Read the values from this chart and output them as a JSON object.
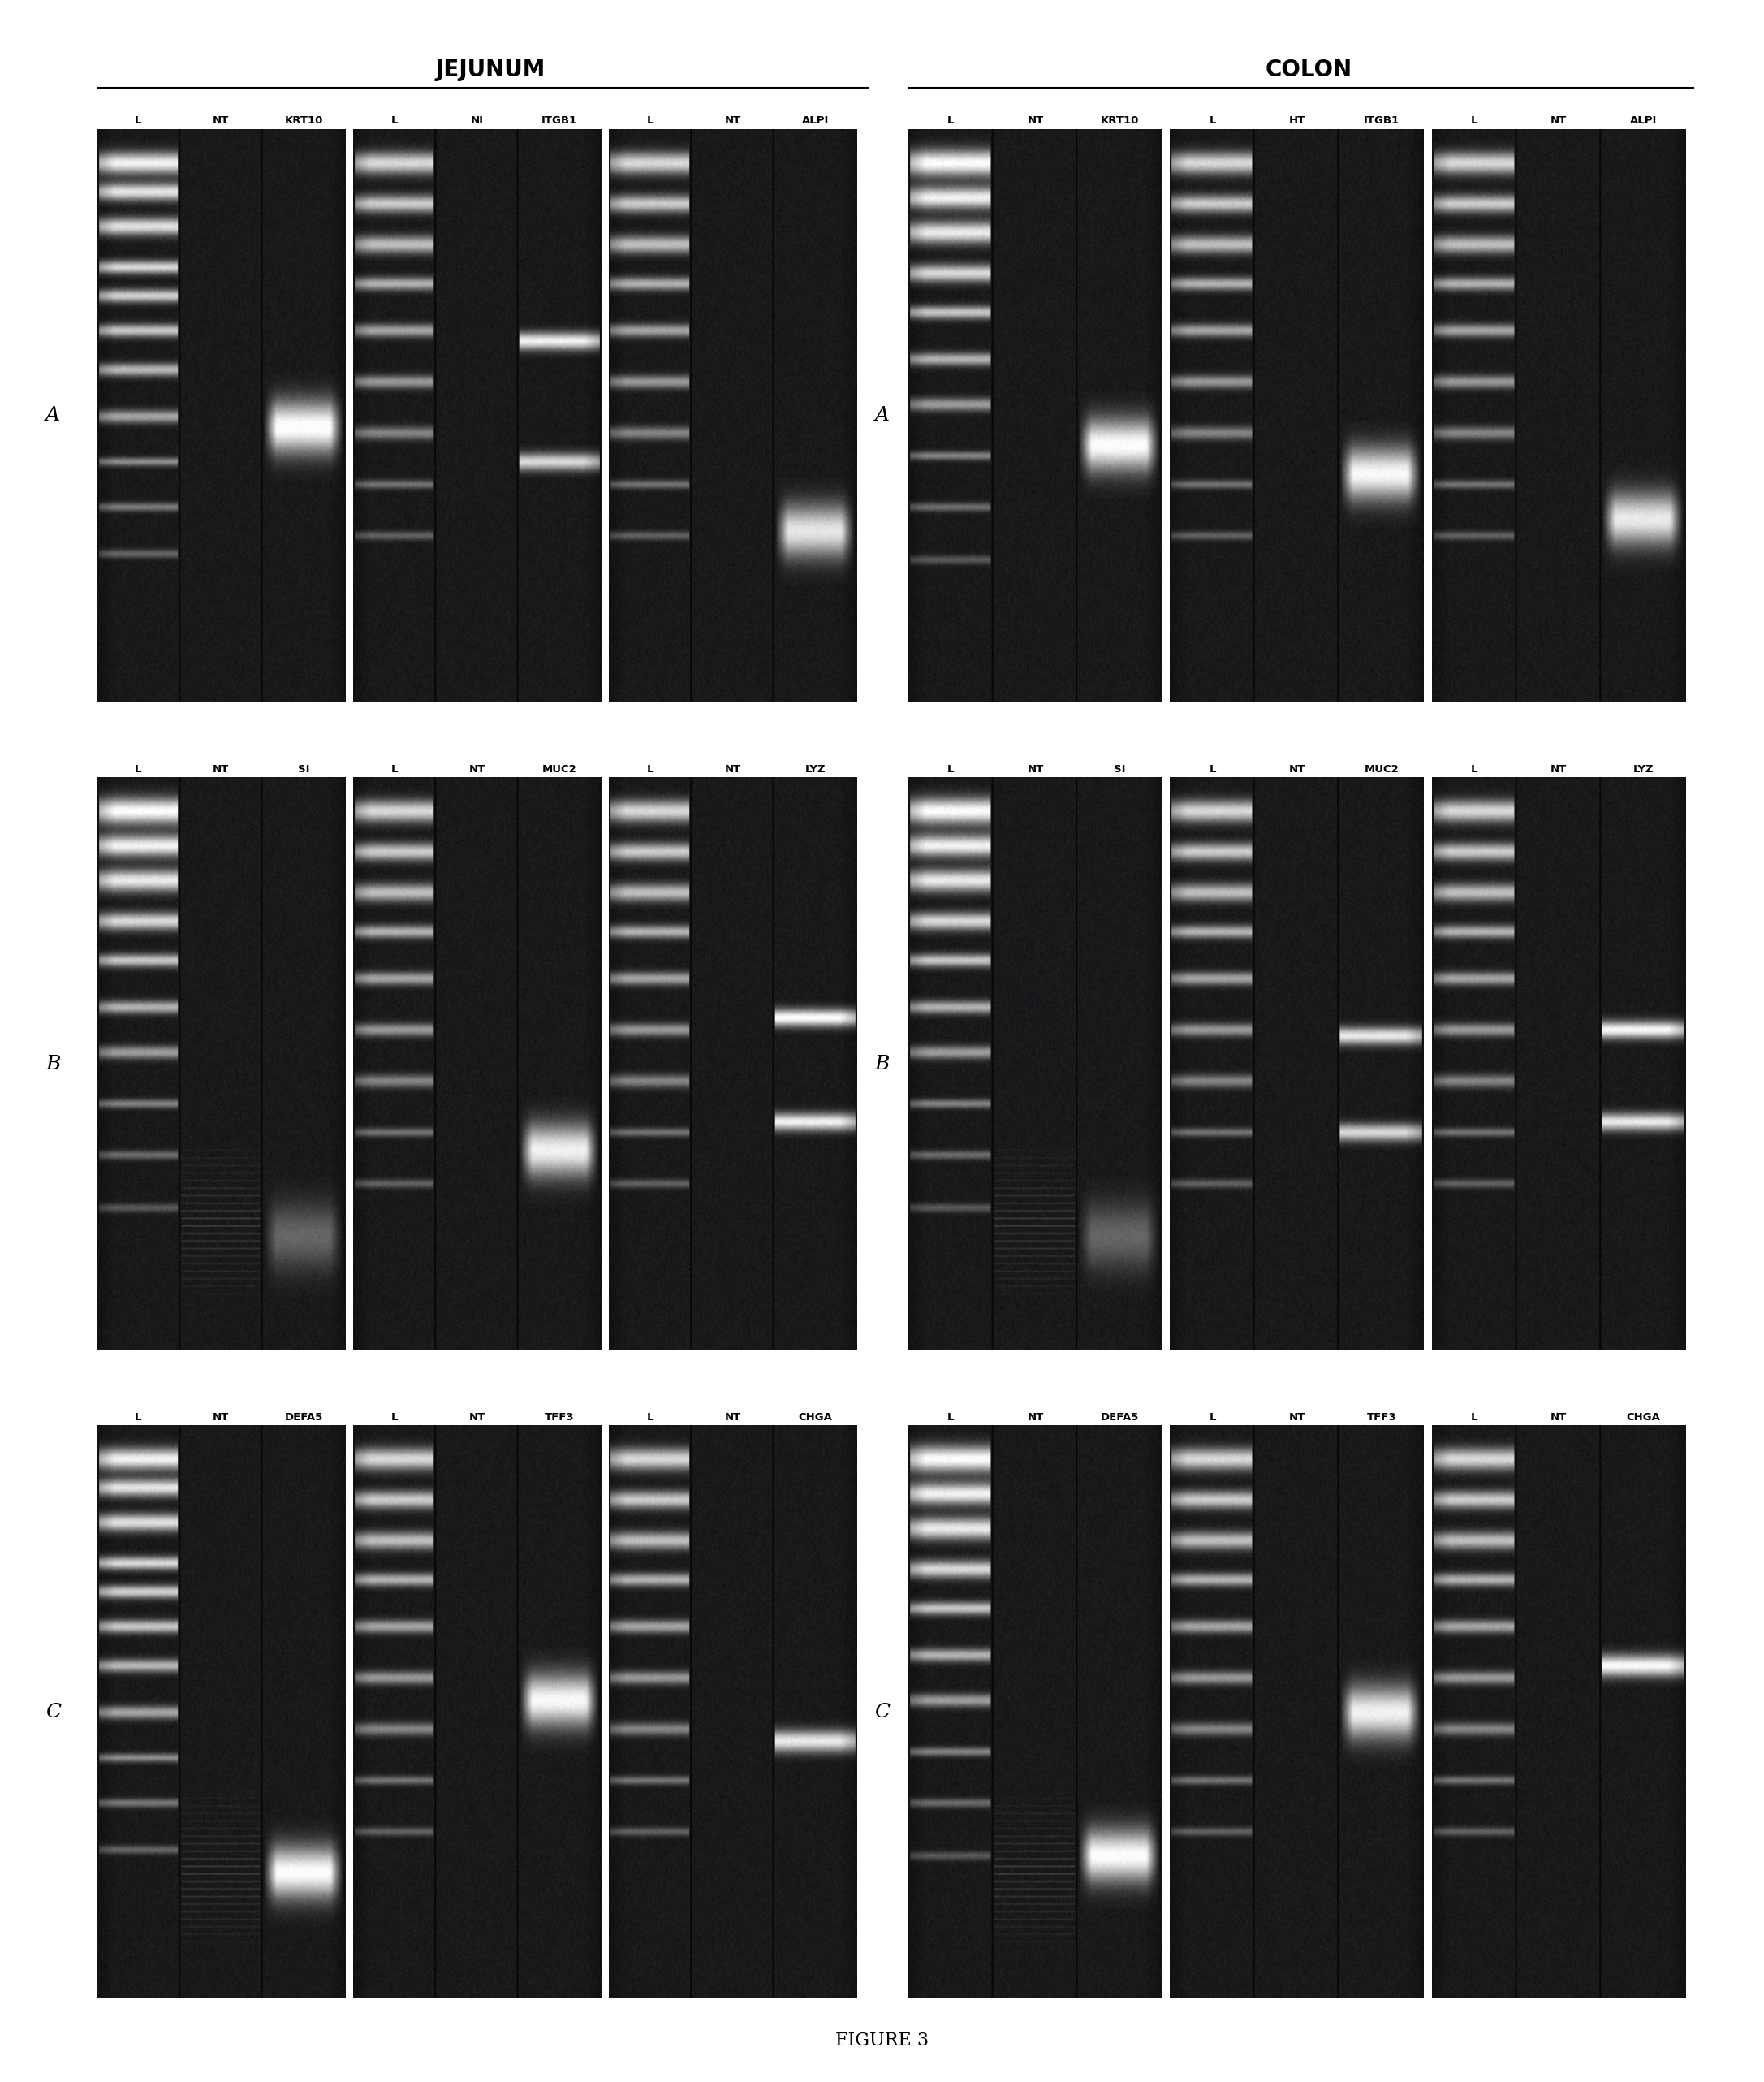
{
  "title": "FIGURE 3",
  "section_titles": [
    "JEJUNUM",
    "COLON"
  ],
  "row_labels": [
    "A",
    "B",
    "C"
  ],
  "jej_headers_row": [
    [
      [
        "L",
        "NT",
        "KRT10"
      ],
      [
        "L",
        "NI",
        "ITGB1"
      ],
      [
        "L",
        "NT",
        "ALPI"
      ]
    ],
    [
      [
        "L",
        "NT",
        "SI"
      ],
      [
        "L",
        "NT",
        "MUC2"
      ],
      [
        "L",
        "NT",
        "LYZ"
      ]
    ],
    [
      [
        "L",
        "NT",
        "DEFA5"
      ],
      [
        "L",
        "NT",
        "TFF3"
      ],
      [
        "L",
        "NT",
        "CHGA"
      ]
    ]
  ],
  "col_headers_row": [
    [
      [
        "L",
        "NT",
        "KRT10"
      ],
      [
        "L",
        "HT",
        "ITGB1"
      ],
      [
        "L",
        "NT",
        "ALPI"
      ]
    ],
    [
      [
        "L",
        "NT",
        "SI"
      ],
      [
        "L",
        "NT",
        "MUC2"
      ],
      [
        "L",
        "NT",
        "LYZ"
      ]
    ],
    [
      [
        "L",
        "NT",
        "DEFA5"
      ],
      [
        "L",
        "NT",
        "TFF3"
      ],
      [
        "L",
        "NT",
        "CHGA"
      ]
    ]
  ],
  "fig_width": 21.73,
  "fig_height": 25.64
}
